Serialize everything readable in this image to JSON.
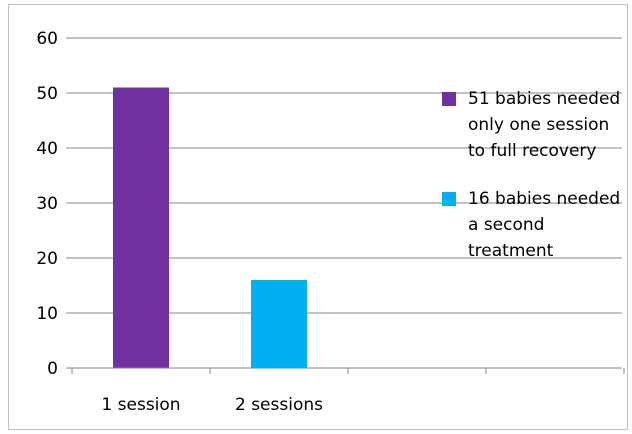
{
  "chart_data": {
    "type": "bar",
    "categories": [
      "1 session",
      "2 sessions"
    ],
    "values": [
      51,
      16
    ],
    "colors": [
      "#7030a0",
      "#00b0f0"
    ],
    "ylim": [
      0,
      60
    ],
    "yticks": [
      "0",
      "10",
      "20",
      "30",
      "40",
      "50",
      "60"
    ],
    "grid": true,
    "legend_position": "right",
    "legend": [
      {
        "label": "51 babies needed only one session to full recovery",
        "color": "#7030a0"
      },
      {
        "label": "16 babies needed a second treatment",
        "color": "#00b0f0"
      }
    ]
  }
}
